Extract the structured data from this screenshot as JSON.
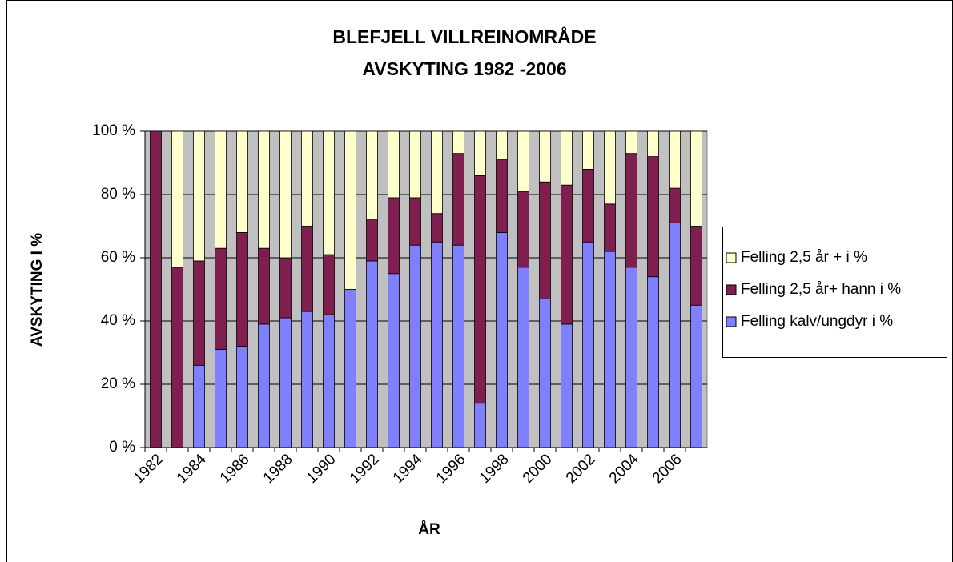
{
  "chart_data": {
    "type": "stacked_bar",
    "title": [
      "BLEFJELL VILLREINOMRÅDE",
      "AVSKYTING 1982 -2006"
    ],
    "x_label": "ÅR",
    "y_label": "AVSKYTING I %",
    "categories": [
      "1982",
      null,
      "1984",
      null,
      "1986",
      null,
      "1988",
      null,
      "1990",
      null,
      "1992",
      null,
      "1994",
      null,
      "1996",
      null,
      "1998",
      null,
      "2000",
      null,
      "2002",
      null,
      "2004",
      null,
      "2006",
      null
    ],
    "series": [
      {
        "name": "Felling kalv/ungdyr i %",
        "color": "#8080ff",
        "values": [
          0,
          0,
          26,
          31,
          32,
          39,
          41,
          43,
          42,
          50,
          59,
          55,
          64,
          65,
          64,
          14,
          68,
          57,
          47,
          39,
          65,
          62,
          57,
          54,
          71,
          45
        ]
      },
      {
        "name": "Felling 2,5 år+ hann i %",
        "color": "#7f1f4f",
        "values": [
          100,
          57,
          33,
          32,
          36,
          24,
          19,
          27,
          19,
          0,
          13,
          24,
          15,
          9,
          29,
          72,
          23,
          24,
          37,
          44,
          23,
          15,
          36,
          38,
          11,
          25
        ]
      },
      {
        "name": "Felling 2,5 år + i %",
        "color": "#ffffcc",
        "values": [
          0,
          43,
          41,
          37,
          32,
          37,
          40,
          30,
          39,
          50,
          28,
          21,
          21,
          26,
          7,
          14,
          9,
          19,
          16,
          17,
          12,
          23,
          7,
          8,
          18,
          30
        ]
      }
    ],
    "ylim": [
      0,
      100
    ],
    "yticks": [
      {
        "value": 0,
        "label": "0 %"
      },
      {
        "value": 20,
        "label": "20 %"
      },
      {
        "value": 40,
        "label": "40 %"
      },
      {
        "value": 60,
        "label": "60 %"
      },
      {
        "value": 80,
        "label": "80 %"
      },
      {
        "value": 100,
        "label": "100 %"
      }
    ],
    "grid": true,
    "plot_background": "#c0c0c0",
    "legend": "right"
  }
}
